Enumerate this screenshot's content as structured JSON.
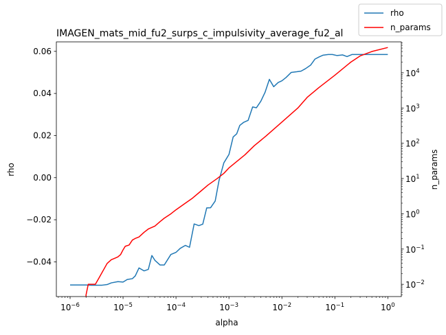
{
  "chart_data": {
    "type": "line",
    "title": "IMAGEN_mats_mid_fu2_surps_c_impulsivity_average_fu2_al",
    "xlabel": "alpha",
    "ylabel_left": "rho",
    "ylabel_right": "n_params",
    "x_scale": "log",
    "y_right_scale": "log",
    "xlim": [
      5.5e-07,
      1.8
    ],
    "ylim_left": [
      -0.0565,
      0.0645
    ],
    "ylim_right": [
      0.0045,
      75000
    ],
    "grid": false,
    "legend": {
      "placement": "top-right",
      "entries": [
        "rho",
        "n_params"
      ]
    },
    "x_ticks": [
      {
        "value": 1e-06,
        "base": "10",
        "exp": "−6"
      },
      {
        "value": 1e-05,
        "base": "10",
        "exp": "−5"
      },
      {
        "value": 0.0001,
        "base": "10",
        "exp": "−4"
      },
      {
        "value": 0.001,
        "base": "10",
        "exp": "−3"
      },
      {
        "value": 0.01,
        "base": "10",
        "exp": "−2"
      },
      {
        "value": 0.1,
        "base": "10",
        "exp": "−1"
      },
      {
        "value": 1,
        "base": "10",
        "exp": "0"
      }
    ],
    "y_left_ticks": [
      {
        "value": -0.04,
        "label": "−0.04"
      },
      {
        "value": -0.02,
        "label": "−0.02"
      },
      {
        "value": 0.0,
        "label": "0.00"
      },
      {
        "value": 0.02,
        "label": "0.02"
      },
      {
        "value": 0.04,
        "label": "0.04"
      },
      {
        "value": 0.06,
        "label": "0.06"
      }
    ],
    "y_right_ticks": [
      {
        "value": 0.01,
        "base": "10",
        "exp": "−2"
      },
      {
        "value": 0.1,
        "base": "10",
        "exp": "−1"
      },
      {
        "value": 1,
        "base": "10",
        "exp": "0"
      },
      {
        "value": 10,
        "base": "10",
        "exp": "1"
      },
      {
        "value": 100,
        "base": "10",
        "exp": "2"
      },
      {
        "value": 1000,
        "base": "10",
        "exp": "3"
      },
      {
        "value": 10000,
        "base": "10",
        "exp": "4"
      }
    ],
    "series": [
      {
        "name": "rho",
        "axis": "left",
        "color": "#1f77b4",
        "x": [
          1e-06,
          1.5e-06,
          2e-06,
          2.5e-06,
          3e-06,
          4e-06,
          5e-06,
          6e-06,
          8e-06,
          1e-05,
          1.2e-05,
          1.5e-05,
          1.7e-05,
          2e-05,
          2.5e-05,
          3e-05,
          3.5e-05,
          4e-05,
          5e-05,
          6e-05,
          8e-05,
          0.0001,
          0.00012,
          0.00015,
          0.00018,
          0.00022,
          0.00027,
          0.00032,
          0.00038,
          0.00045,
          0.00055,
          0.00065,
          0.0008,
          0.001,
          0.0012,
          0.0014,
          0.0016,
          0.0019,
          0.0023,
          0.0028,
          0.0033,
          0.004,
          0.0048,
          0.0058,
          0.007,
          0.0085,
          0.01,
          0.012,
          0.015,
          0.019,
          0.023,
          0.028,
          0.035,
          0.042,
          0.05,
          0.06,
          0.075,
          0.09,
          0.11,
          0.14,
          0.17,
          0.21,
          0.26,
          0.32,
          0.4,
          0.5,
          0.62,
          0.78,
          1.0
        ],
        "values": [
          -0.051,
          -0.051,
          -0.051,
          -0.0511,
          -0.0511,
          -0.0511,
          -0.0508,
          -0.05,
          -0.0494,
          -0.0496,
          -0.0484,
          -0.048,
          -0.0467,
          -0.0429,
          -0.0443,
          -0.0436,
          -0.037,
          -0.0393,
          -0.0415,
          -0.0415,
          -0.0365,
          -0.0355,
          -0.0336,
          -0.0322,
          -0.0331,
          -0.022,
          -0.0228,
          -0.0221,
          -0.0144,
          -0.0143,
          -0.0111,
          -0.0013,
          0.007,
          0.011,
          0.0193,
          0.0208,
          0.0248,
          0.0263,
          0.0272,
          0.0336,
          0.0332,
          0.0363,
          0.0405,
          0.0467,
          0.0432,
          0.0452,
          0.046,
          0.0476,
          0.05,
          0.0503,
          0.0506,
          0.0518,
          0.0535,
          0.0563,
          0.0573,
          0.0582,
          0.0585,
          0.0585,
          0.058,
          0.0583,
          0.0575,
          0.0585,
          0.0585,
          0.0585,
          0.0585,
          0.0585,
          0.0585,
          0.0585,
          0.0585
        ]
      },
      {
        "name": "n_params",
        "axis": "right",
        "color": "#ff0000",
        "x": [
          2e-06,
          2.2e-06,
          3e-06,
          3.5e-06,
          5e-06,
          6e-06,
          7e-06,
          8e-06,
          9e-06,
          1e-05,
          1.1e-05,
          1.3e-05,
          1.5e-05,
          1.7e-05,
          2e-05,
          2.5e-05,
          3e-05,
          4e-05,
          5e-05,
          6e-05,
          8e-05,
          0.0001,
          0.00015,
          0.0002,
          0.0003,
          0.0004,
          0.0006,
          0.0008,
          0.001,
          0.002,
          0.003,
          0.005,
          0.01,
          0.02,
          0.03,
          0.05,
          0.1,
          0.2,
          0.3,
          0.5,
          1.0
        ],
        "values": [
          0.005,
          0.01,
          0.01,
          0.015,
          0.039,
          0.05,
          0.055,
          0.06,
          0.07,
          0.095,
          0.12,
          0.13,
          0.18,
          0.2,
          0.22,
          0.3,
          0.37,
          0.45,
          0.6,
          0.75,
          1.0,
          1.3,
          2.0,
          2.7,
          4.5,
          6.5,
          10,
          14,
          20,
          47,
          85,
          160,
          400,
          1000,
          2000,
          3800,
          8500,
          20000,
          30000,
          40000,
          52000
        ]
      }
    ]
  }
}
